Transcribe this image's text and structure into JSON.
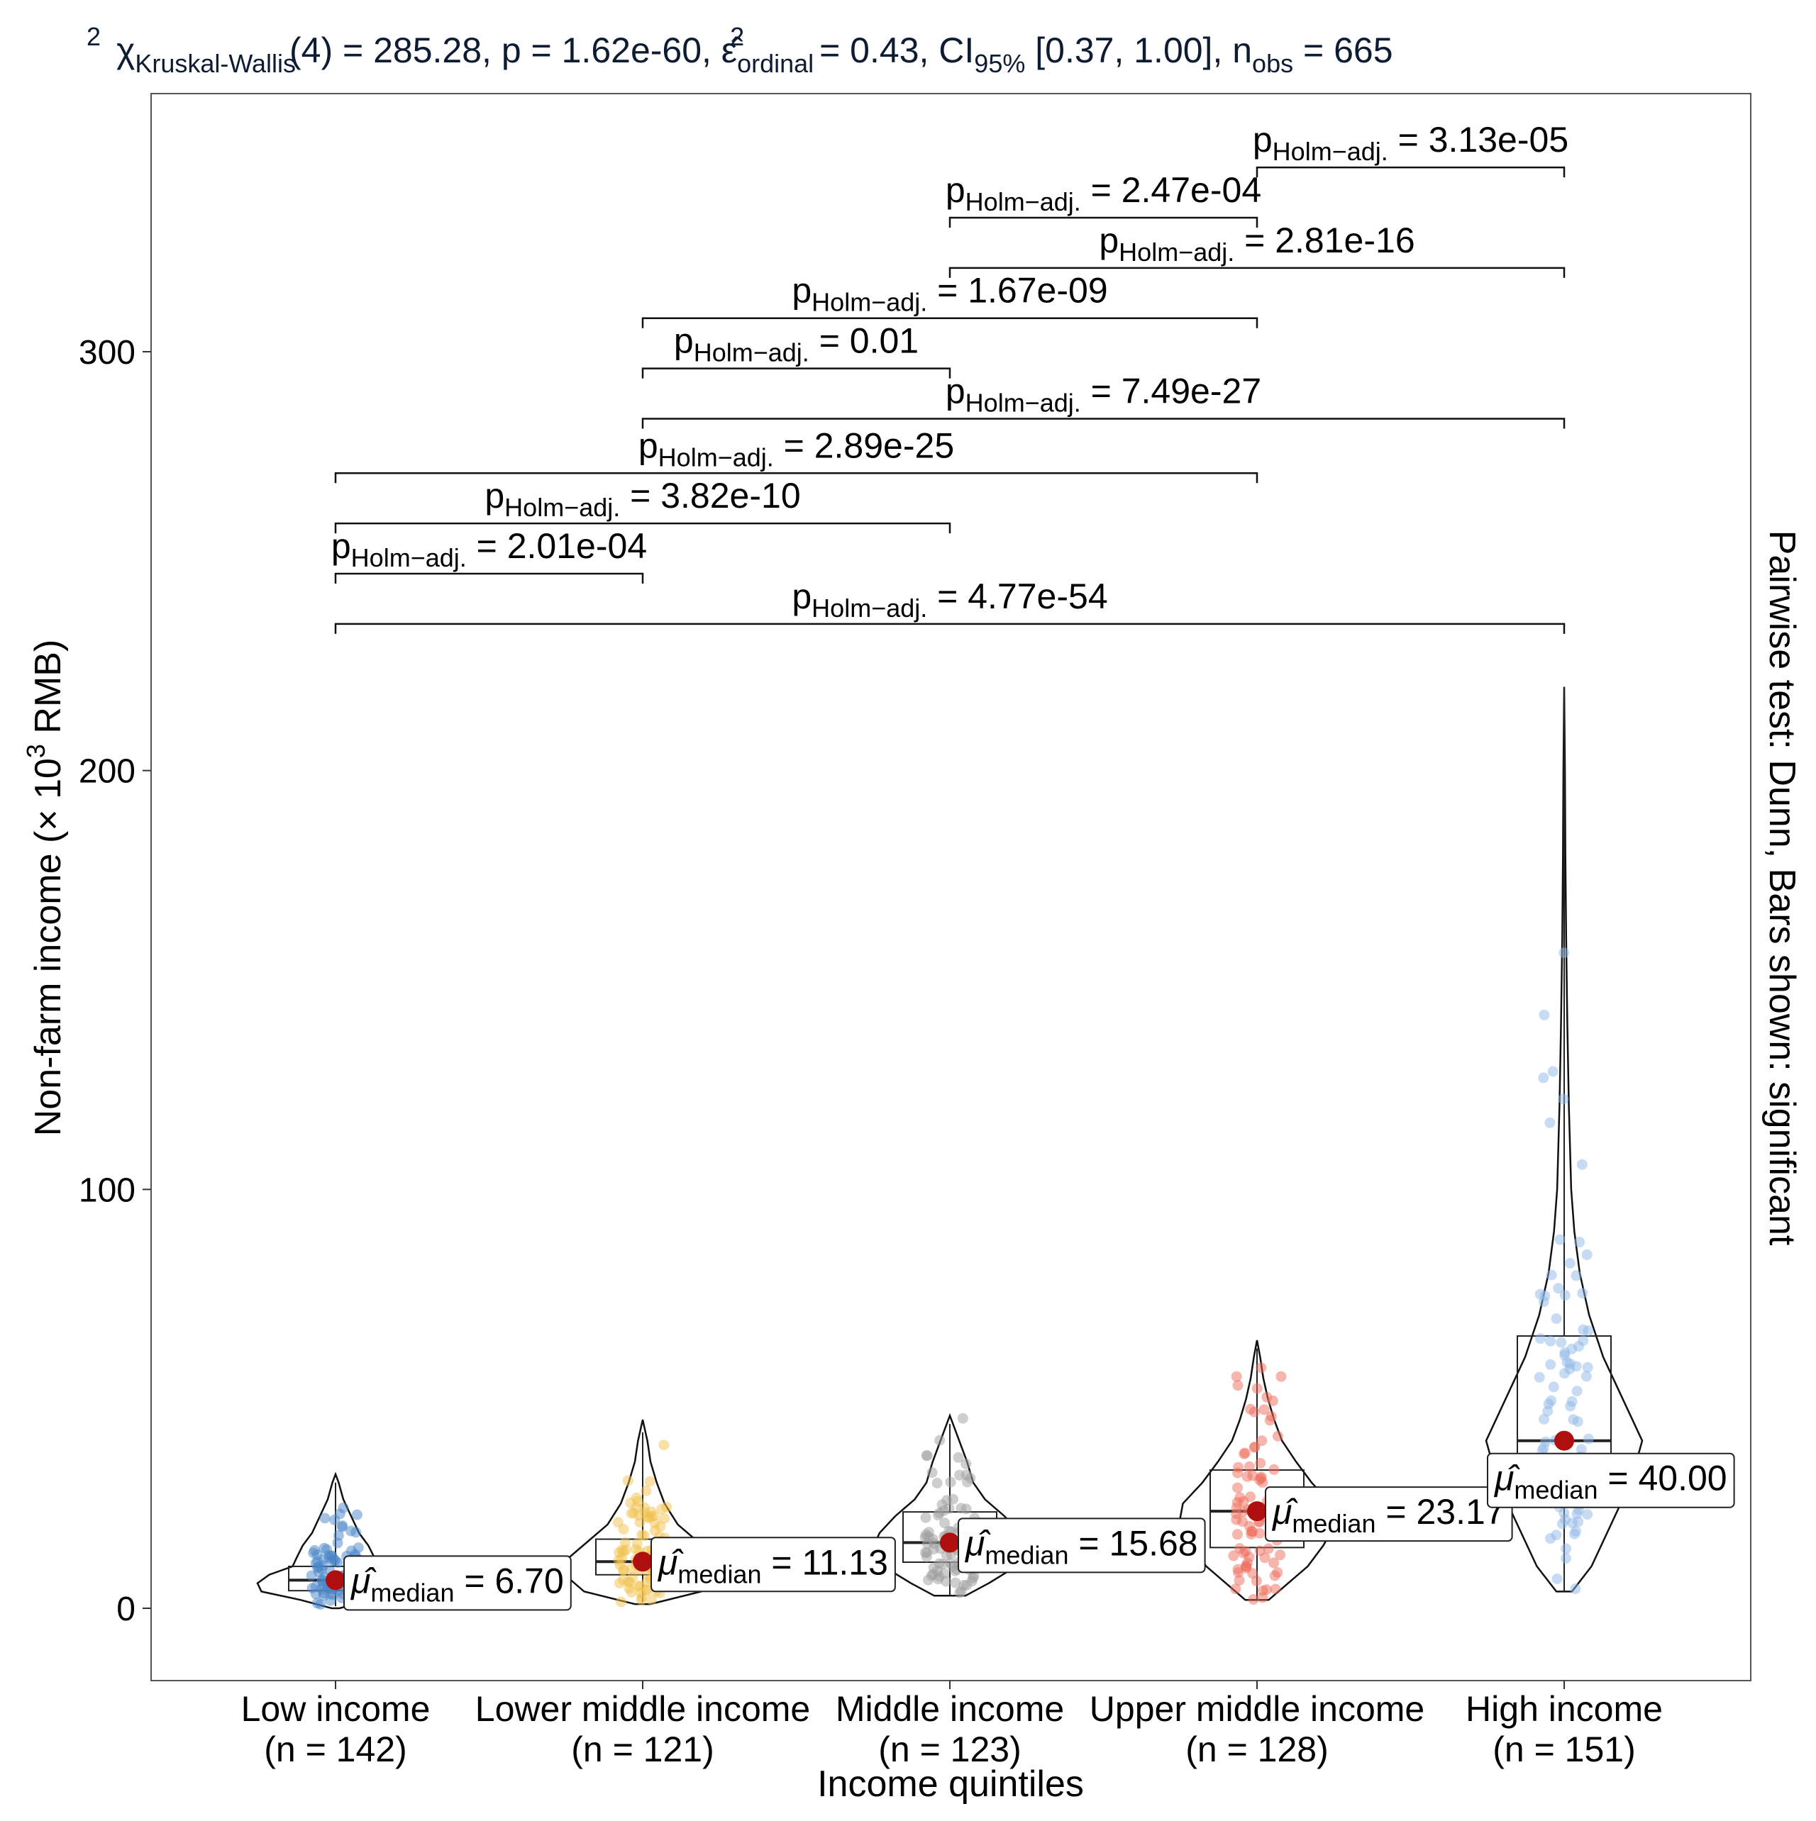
{
  "chart_data": {
    "type": "violin-box-scatter",
    "title": {
      "chi_symbol": "χ",
      "chi_sub": "Kruskal-Wallis",
      "chi_sup": "2",
      "df_text": "(4) = 285.28, p = 1.62e-60, ",
      "eps_symbol": "ε̂",
      "eps_sub": "ordinal",
      "eps_sup": "2",
      "eps_text": " = 0.43, CI",
      "ci_sub": "95%",
      "ci_text": " [0.37, 1.00], n",
      "n_sub": "obs",
      "n_text": " = 665"
    },
    "xlabel": "Income quintiles",
    "ylabel_pre": "Non-farm income (× 10",
    "ylabel_sup": "3",
    "ylabel_post": " RMB)",
    "right_label": "Pairwise test: Dunn, Bars shown: significant",
    "ylim": [
      -17,
      362
    ],
    "yticks": [
      0,
      100,
      200,
      300
    ],
    "categories": [
      {
        "name": "Low income",
        "n_label": "(n = 142)",
        "color": "#4a86c8",
        "median": 6.7,
        "median_label": "6.70",
        "q1": 4.2,
        "q3": 10.0,
        "whisker_low": 0.5,
        "whisker_high": 30.0,
        "max": 32.0,
        "violin": [
          [
            0,
            0.05
          ],
          [
            2,
            0.45
          ],
          [
            4,
            0.95
          ],
          [
            6,
            1.0
          ],
          [
            8,
            0.85
          ],
          [
            10,
            0.55
          ],
          [
            12,
            0.5
          ],
          [
            15,
            0.42
          ],
          [
            18,
            0.3
          ],
          [
            22,
            0.2
          ],
          [
            26,
            0.1
          ],
          [
            30,
            0.04
          ],
          [
            32,
            0
          ]
        ]
      },
      {
        "name": "Lower middle income",
        "n_label": "(n = 121)",
        "color": "#f2c14e",
        "median": 11.13,
        "median_label": "11.13",
        "q1": 8.0,
        "q3": 16.5,
        "whisker_low": 1.5,
        "whisker_high": 42.0,
        "max": 45.0,
        "violin": [
          [
            1,
            0.1
          ],
          [
            4,
            0.75
          ],
          [
            8,
            1.0
          ],
          [
            12,
            0.95
          ],
          [
            16,
            0.7
          ],
          [
            20,
            0.45
          ],
          [
            25,
            0.28
          ],
          [
            30,
            0.18
          ],
          [
            35,
            0.1
          ],
          [
            40,
            0.06
          ],
          [
            45,
            0
          ]
        ]
      },
      {
        "name": "Middle income",
        "n_label": "(n = 123)",
        "color": "#9e9e9e",
        "median": 15.68,
        "median_label": "15.68",
        "q1": 11.0,
        "q3": 23.0,
        "whisker_low": 3.0,
        "whisker_high": 44.0,
        "max": 46.0,
        "violin": [
          [
            3,
            0.2
          ],
          [
            6,
            0.5
          ],
          [
            10,
            0.85
          ],
          [
            14,
            1.0
          ],
          [
            18,
            0.9
          ],
          [
            22,
            0.7
          ],
          [
            26,
            0.45
          ],
          [
            30,
            0.3
          ],
          [
            35,
            0.22
          ],
          [
            40,
            0.12
          ],
          [
            44,
            0.04
          ],
          [
            46,
            0
          ]
        ]
      },
      {
        "name": "Upper middle income",
        "n_label": "(n = 128)",
        "color": "#ee6b5b",
        "median": 23.17,
        "median_label": "23.17",
        "q1": 14.5,
        "q3": 33.0,
        "whisker_low": 2.0,
        "whisker_high": 62.0,
        "max": 64.0,
        "violin": [
          [
            2,
            0.15
          ],
          [
            6,
            0.4
          ],
          [
            10,
            0.65
          ],
          [
            15,
            0.85
          ],
          [
            20,
            1.0
          ],
          [
            25,
            0.95
          ],
          [
            30,
            0.7
          ],
          [
            35,
            0.5
          ],
          [
            40,
            0.32
          ],
          [
            45,
            0.22
          ],
          [
            50,
            0.14
          ],
          [
            55,
            0.08
          ],
          [
            60,
            0.04
          ],
          [
            64,
            0
          ]
        ]
      },
      {
        "name": "High income",
        "n_label": "(n = 151)",
        "color": "#8fb8e6",
        "median": 40.0,
        "median_label": "40.00",
        "q1": 25.0,
        "q3": 65.0,
        "whisker_low": 4.0,
        "whisker_high": 220.0,
        "max": 220.0,
        "violin": [
          [
            4,
            0.1
          ],
          [
            10,
            0.35
          ],
          [
            20,
            0.6
          ],
          [
            30,
            0.85
          ],
          [
            40,
            1.0
          ],
          [
            50,
            0.75
          ],
          [
            60,
            0.5
          ],
          [
            70,
            0.32
          ],
          [
            80,
            0.2
          ],
          [
            90,
            0.13
          ],
          [
            100,
            0.09
          ],
          [
            120,
            0.06
          ],
          [
            140,
            0.04
          ],
          [
            160,
            0.025
          ],
          [
            180,
            0.015
          ],
          [
            200,
            0.01
          ],
          [
            220,
            0
          ]
        ]
      }
    ],
    "median_label_prefix": "μ̂",
    "median_label_sub": "median",
    "pairwise_prefix": "p",
    "pairwise_sub": "Holm−adj.",
    "pairwise": [
      {
        "from": 0,
        "to": 4,
        "y": 235,
        "p": "= 4.77e-54"
      },
      {
        "from": 0,
        "to": 1,
        "y": 247,
        "p": "= 2.01e-04"
      },
      {
        "from": 0,
        "to": 2,
        "y": 259,
        "p": "= 3.82e-10"
      },
      {
        "from": 0,
        "to": 3,
        "y": 271,
        "p": "= 2.89e-25"
      },
      {
        "from": 1,
        "to": 4,
        "y": 284,
        "p": "= 7.49e-27"
      },
      {
        "from": 1,
        "to": 2,
        "y": 296,
        "p": "= 0.01"
      },
      {
        "from": 1,
        "to": 3,
        "y": 308,
        "p": "= 1.67e-09"
      },
      {
        "from": 2,
        "to": 4,
        "y": 320,
        "p": "= 2.81e-16"
      },
      {
        "from": 2,
        "to": 3,
        "y": 332,
        "p": "= 2.47e-04"
      },
      {
        "from": 3,
        "to": 4,
        "y": 344,
        "p": "= 3.13e-05"
      }
    ]
  }
}
